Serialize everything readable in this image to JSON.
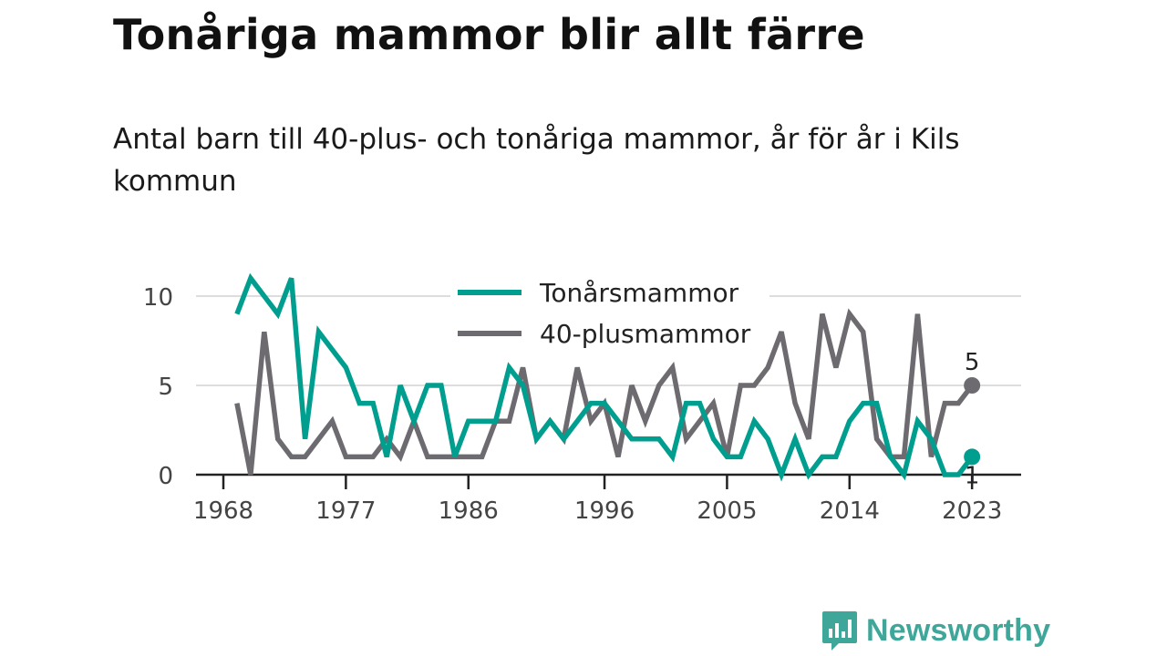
{
  "title": "Tonåriga mammor blir allt färre",
  "subtitle": "Antal barn till 40-plus- och tonåriga mammor, år för år i Kils kommun",
  "brand": {
    "name": "Newsworthy",
    "color": "#3fa79a"
  },
  "chart_data": {
    "type": "line",
    "x": [
      1969,
      1970,
      1971,
      1972,
      1973,
      1974,
      1975,
      1976,
      1977,
      1978,
      1979,
      1980,
      1981,
      1982,
      1983,
      1984,
      1985,
      1986,
      1987,
      1988,
      1989,
      1990,
      1991,
      1992,
      1993,
      1994,
      1995,
      1996,
      1997,
      1998,
      1999,
      2000,
      2001,
      2002,
      2003,
      2004,
      2005,
      2006,
      2007,
      2008,
      2009,
      2010,
      2011,
      2012,
      2013,
      2014,
      2015,
      2016,
      2017,
      2018,
      2019,
      2020,
      2021,
      2022,
      2023
    ],
    "series": [
      {
        "name": "Tonårsmammor",
        "color": "#009e8f",
        "values": [
          9,
          11,
          10,
          9,
          11,
          2,
          8,
          7,
          6,
          4,
          4,
          1,
          5,
          3,
          5,
          5,
          1,
          3,
          3,
          3,
          6,
          5,
          2,
          3,
          2,
          3,
          4,
          4,
          3,
          2,
          2,
          2,
          1,
          4,
          4,
          2,
          1,
          1,
          3,
          2,
          0,
          2,
          0,
          1,
          1,
          3,
          4,
          4,
          1,
          0,
          3,
          2,
          0,
          0,
          1
        ]
      },
      {
        "name": "40-plusmammor",
        "color": "#6d6b70",
        "values": [
          4,
          0,
          8,
          2,
          1,
          1,
          2,
          3,
          1,
          1,
          1,
          2,
          1,
          3,
          1,
          1,
          1,
          1,
          1,
          3,
          3,
          6,
          2,
          3,
          2,
          6,
          3,
          4,
          1,
          5,
          3,
          5,
          6,
          2,
          3,
          4,
          1,
          5,
          5,
          6,
          8,
          4,
          2,
          9,
          6,
          9,
          8,
          2,
          1,
          1,
          9,
          1,
          4,
          4,
          5
        ]
      }
    ],
    "yticks": [
      0,
      5,
      10
    ],
    "xticks": [
      1968,
      1977,
      1986,
      1996,
      2005,
      2014,
      2023
    ],
    "xlim": [
      1968,
      2025
    ],
    "ylim": [
      0,
      11
    ],
    "end_labels": [
      "1",
      "5"
    ],
    "legend_position": "top",
    "grid": "horizontal"
  }
}
